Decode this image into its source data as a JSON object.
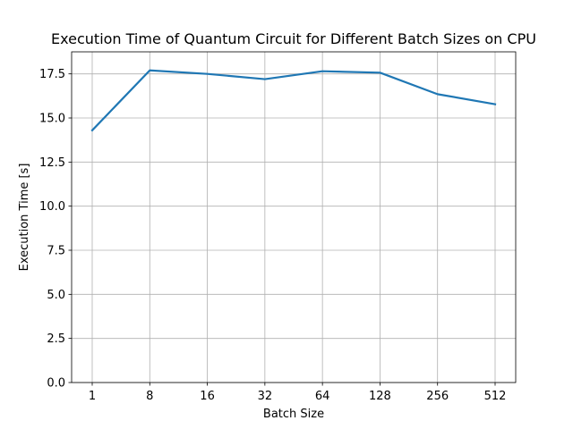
{
  "chart_data": {
    "type": "line",
    "title": "Execution Time of Quantum Circuit for Different Batch Sizes on CPU",
    "xlabel": "Batch Size",
    "ylabel": "Execution Time [s]",
    "categories": [
      "1",
      "8",
      "16",
      "32",
      "64",
      "128",
      "256",
      "512"
    ],
    "series": [
      {
        "values": [
          14.3,
          17.7,
          17.5,
          17.2,
          17.65,
          17.57,
          16.35,
          15.78
        ]
      }
    ],
    "yticks": [
      "0.0",
      "2.5",
      "5.0",
      "7.5",
      "10.0",
      "12.5",
      "15.0",
      "17.5"
    ],
    "ylim": [
      0,
      18.75
    ],
    "grid": true,
    "line_color": "#1f77b4"
  }
}
